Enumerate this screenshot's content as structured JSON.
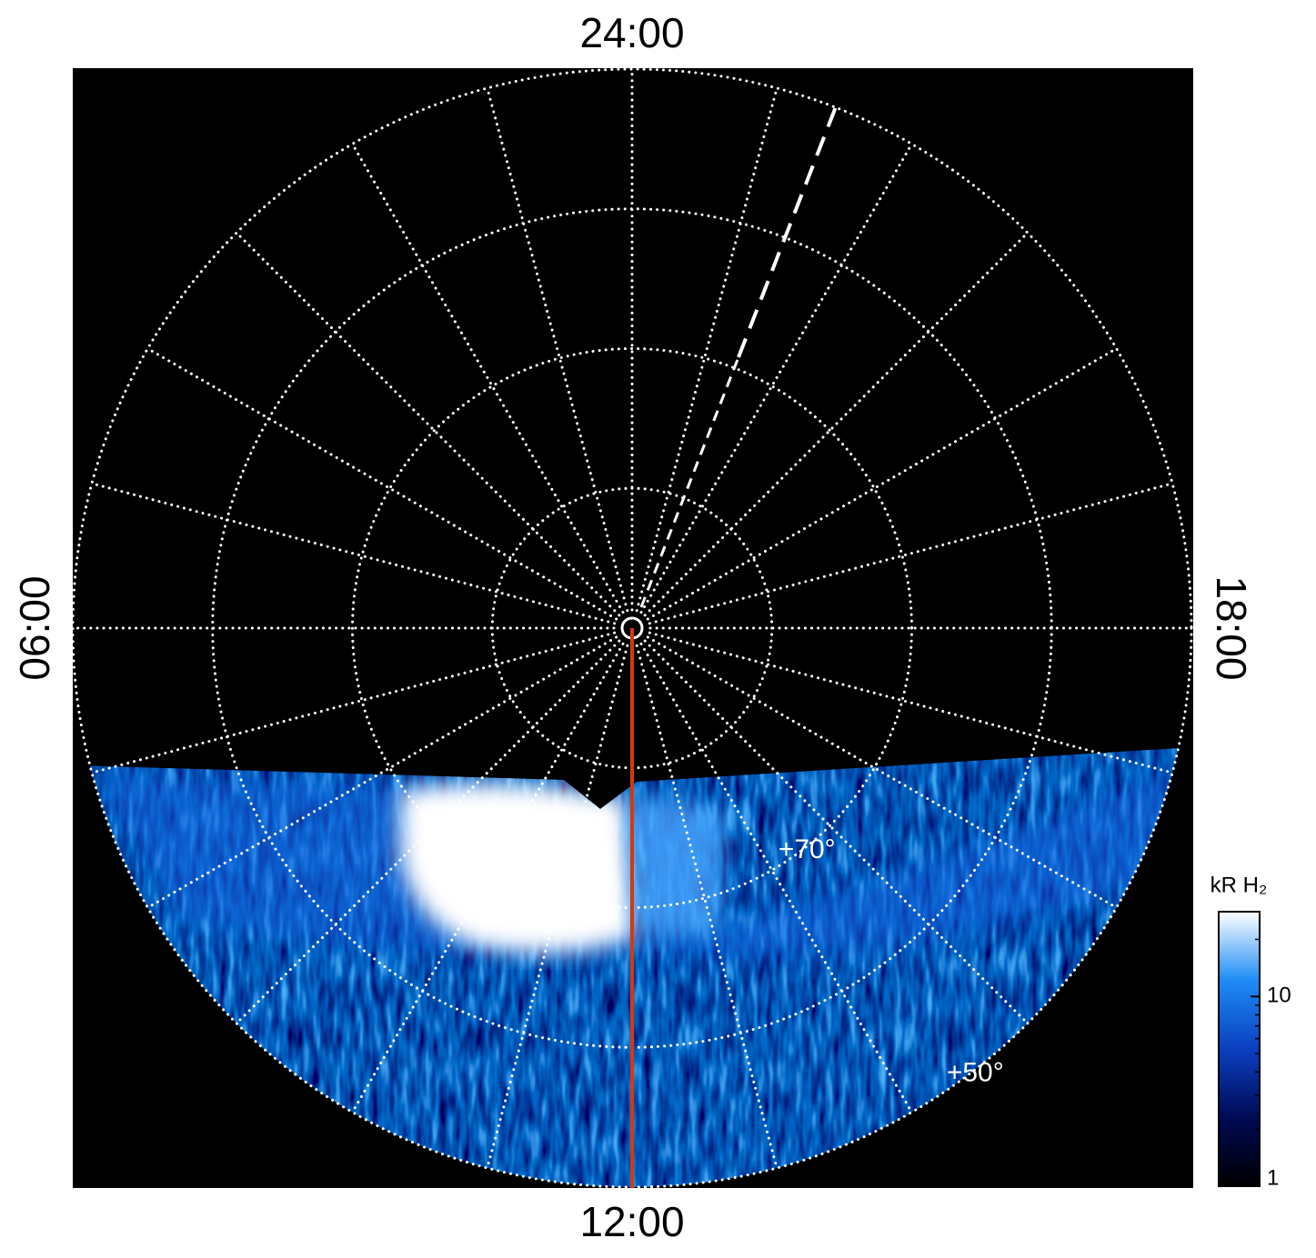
{
  "chart_data": {
    "type": "polar-map",
    "local_time_labels": {
      "top": "24:00",
      "left": "06:00",
      "right": "18:00",
      "bottom": "12:00"
    },
    "rlim": [
      90,
      50
    ],
    "latitude_grid": [
      50,
      60,
      70,
      80
    ],
    "meridians": 24,
    "latitude_labels": [
      {
        "value": 70,
        "label": "+70°"
      },
      {
        "value": 50,
        "label": "+50°"
      }
    ],
    "colorbar": {
      "title": "kR H₂",
      "log": true,
      "clim": [
        1,
        28
      ],
      "ticks": [
        1,
        10
      ],
      "colors": [
        "#000000",
        "#000a55",
        "#0a3fc0",
        "#1e8cf5",
        "#ffffff"
      ]
    }
  }
}
